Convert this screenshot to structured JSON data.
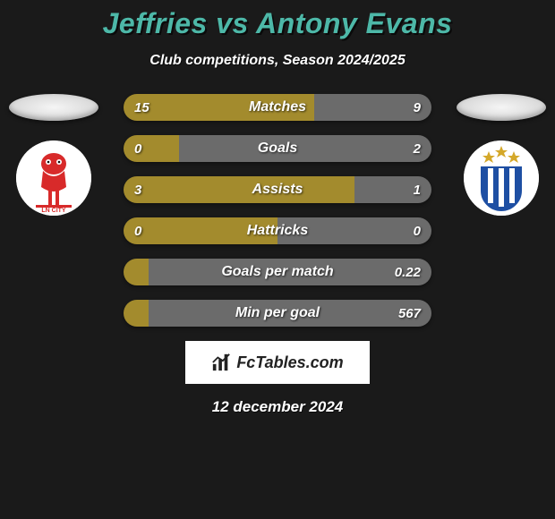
{
  "title_left": "Jeffries",
  "title_vs": "vs",
  "title_right": "Antony Evans",
  "subtitle": "Club competitions, Season 2024/2025",
  "date": "12 december 2024",
  "logo_text": "FcTables.com",
  "colors": {
    "title": "#4db8a8",
    "left": "#a38b2d",
    "right": "#6b6b6b",
    "bg": "#1a1a1a"
  },
  "crest_left": {
    "bg": "#ffffff",
    "primary": "#d82a2a"
  },
  "crest_right": {
    "bg": "#ffffff",
    "stripe_a": "#1e4fa3",
    "stripe_b": "#ffffff",
    "star": "#d4a82a"
  },
  "stats": [
    {
      "label": "Matches",
      "left_val": "15",
      "right_val": "9",
      "left_pct": 62,
      "right_pct": 38
    },
    {
      "label": "Goals",
      "left_val": "0",
      "right_val": "2",
      "left_pct": 18,
      "right_pct": 82
    },
    {
      "label": "Assists",
      "left_val": "3",
      "right_val": "1",
      "left_pct": 75,
      "right_pct": 25
    },
    {
      "label": "Hattricks",
      "left_val": "0",
      "right_val": "0",
      "left_pct": 50,
      "right_pct": 50
    },
    {
      "label": "Goals per match",
      "left_val": "",
      "right_val": "0.22",
      "left_pct": 8,
      "right_pct": 92
    },
    {
      "label": "Min per goal",
      "left_val": "",
      "right_val": "567",
      "left_pct": 8,
      "right_pct": 92
    }
  ]
}
